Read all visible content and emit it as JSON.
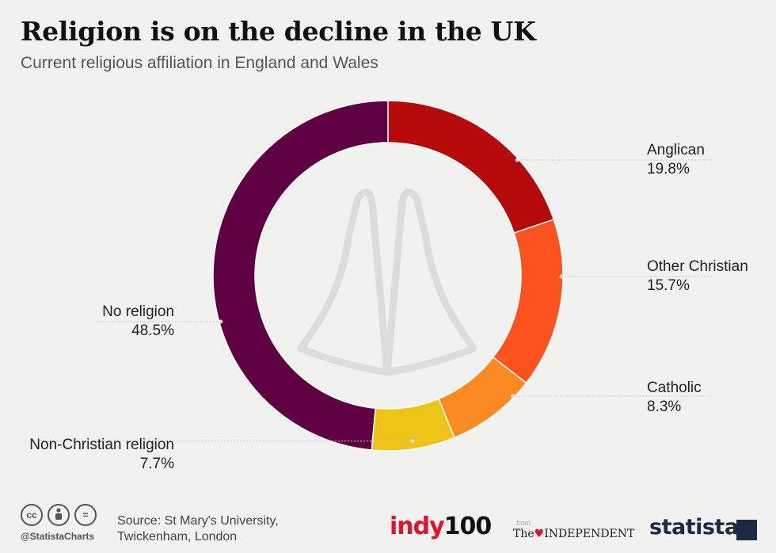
{
  "header": {
    "title": "Religion is on the decline in the UK",
    "subtitle": "Current religious affiliation in England and Wales"
  },
  "chart_data": {
    "type": "pie",
    "variant": "donut",
    "title": "Religion is on the decline in the UK",
    "subtitle": "Current religious affiliation in England and Wales",
    "unit": "%",
    "slices": [
      {
        "name": "Anglican",
        "value": 19.8,
        "label": "19.8%",
        "color": "#b40a0a"
      },
      {
        "name": "Other Christian",
        "value": 15.7,
        "label": "15.7%",
        "color": "#fb531f"
      },
      {
        "name": "Catholic",
        "value": 8.3,
        "label": "8.3%",
        "color": "#fc8a22"
      },
      {
        "name": "Non-Christian religion",
        "value": 7.7,
        "label": "7.7%",
        "color": "#eec318"
      },
      {
        "name": "No religion",
        "value": 48.5,
        "label": "48.5%",
        "color": "#5e0041"
      }
    ],
    "center_icon": "praying-hands-icon"
  },
  "footer": {
    "icons": [
      "cc-icon",
      "attribution-icon",
      "no-derivatives-icon"
    ],
    "cc_text": "cc",
    "nd_text": "=",
    "handle": "@StatistaCharts",
    "source_line1": "Source: St Mary's University,",
    "source_line2": "Twickenham, London",
    "indy_a": "indy",
    "indy_b": "100",
    "from": "from",
    "independent_pre": "The",
    "independent_post": "INDEPENDENT",
    "statista": "statista"
  }
}
